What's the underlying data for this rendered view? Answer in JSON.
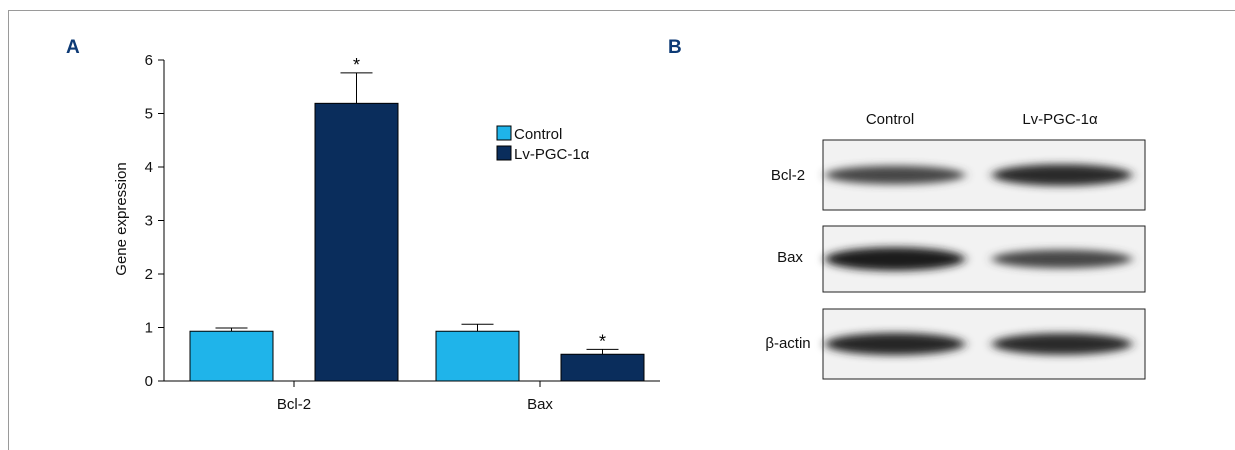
{
  "panels": {
    "a_label": "A",
    "b_label": "B"
  },
  "chart_data": {
    "type": "bar",
    "categories": [
      "Bcl-2",
      "Bax"
    ],
    "ylabel": "Gene expression",
    "ylim": [
      0,
      6
    ],
    "yticks": [
      0,
      1,
      2,
      3,
      4,
      5,
      6
    ],
    "series": [
      {
        "name": "Control",
        "color": "#1fb4ea",
        "values": [
          0.93,
          0.93
        ],
        "errors": [
          0.06,
          0.13
        ],
        "sig": [
          "",
          ""
        ]
      },
      {
        "name": "Lv-PGC-1α",
        "color": "#0a2d5c",
        "values": [
          5.19,
          0.5
        ],
        "errors": [
          0.57,
          0.09
        ],
        "sig": [
          "*",
          "*"
        ]
      }
    ],
    "legend_position": "top-right",
    "grid": false
  },
  "blot": {
    "columns": [
      "Control",
      "Lv-PGC-1α"
    ],
    "rows": [
      "Bcl-2",
      "Bax",
      "β-actin"
    ],
    "intensities": [
      [
        0.55,
        0.8
      ],
      [
        0.95,
        0.55
      ],
      [
        0.85,
        0.8
      ]
    ]
  }
}
